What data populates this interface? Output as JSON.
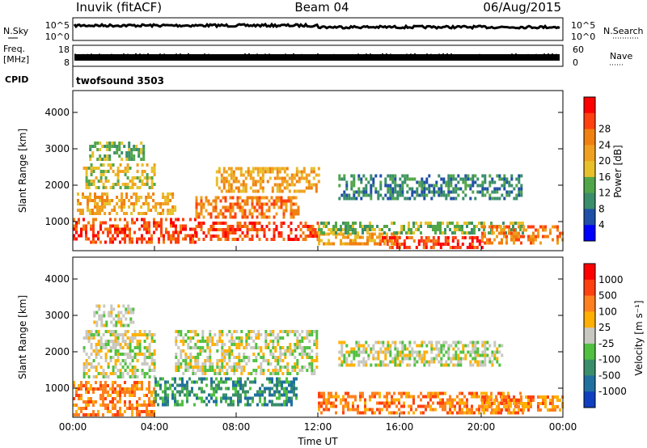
{
  "header": {
    "station": "Inuvik (fitACF)",
    "beam": "Beam 04",
    "date": "06/Aug/2015"
  },
  "nsky_panel": {
    "left_label": "N.Sky",
    "right_label": "N.Search",
    "left_ticks": [
      "10^5",
      "10^0"
    ],
    "right_ticks": [
      "10^5",
      "10^0"
    ]
  },
  "freq_panel": {
    "left_label_1": "Freq.",
    "left_label_2": "[MHz]",
    "right_label": "Nave",
    "left_ticks": [
      "18",
      "8"
    ],
    "right_ticks": [
      "60",
      "0"
    ]
  },
  "cpid_panel": {
    "label": "CPID",
    "text": "twofsound 3503"
  },
  "chart_data": [
    {
      "type": "heatmap",
      "name": "power",
      "xlabel": "",
      "ylabel": "Slant Range [km]",
      "xlim": [
        0,
        24
      ],
      "ylim": [
        200,
        4600
      ],
      "yticks": [
        "1000",
        "2000",
        "3000",
        "4000"
      ],
      "colorbar": {
        "label": "Power [dB]",
        "ticks": [
          "4",
          "8",
          "12",
          "16",
          "20",
          "24",
          "28"
        ],
        "colors": [
          "#0000ff",
          "#1f4fa6",
          "#3a8e6a",
          "#52a64a",
          "#e8c02a",
          "#f0a020",
          "#f08010",
          "#ff4010",
          "#ff0000"
        ]
      },
      "bands": [
        {
          "x": [
            0,
            6
          ],
          "y": [
            400,
            1100
          ],
          "level": 7
        },
        {
          "x": [
            0.2,
            5
          ],
          "y": [
            1200,
            1800
          ],
          "level": 5
        },
        {
          "x": [
            0.5,
            4
          ],
          "y": [
            1900,
            2600
          ],
          "level": 4
        },
        {
          "x": [
            0.8,
            3.5
          ],
          "y": [
            2700,
            3200
          ],
          "level": 3
        },
        {
          "x": [
            6,
            12
          ],
          "y": [
            500,
            1000
          ],
          "level": 7
        },
        {
          "x": [
            6,
            11
          ],
          "y": [
            1100,
            1700
          ],
          "level": 6
        },
        {
          "x": [
            7,
            12
          ],
          "y": [
            1800,
            2500
          ],
          "level": 5
        },
        {
          "x": [
            12,
            16
          ],
          "y": [
            400,
            700
          ],
          "level": 5
        },
        {
          "x": [
            15,
            20
          ],
          "y": [
            300,
            600
          ],
          "level": 7
        },
        {
          "x": [
            12,
            22
          ],
          "y": [
            700,
            1000
          ],
          "level": 3
        },
        {
          "x": [
            13,
            22
          ],
          "y": [
            1600,
            2300
          ],
          "level": 2
        },
        {
          "x": [
            20,
            24
          ],
          "y": [
            400,
            900
          ],
          "level": 6
        }
      ]
    },
    {
      "type": "heatmap",
      "name": "velocity",
      "xlabel": "Time UT",
      "ylabel": "Slant Range [km]",
      "xlim": [
        0,
        24
      ],
      "ylim": [
        200,
        4600
      ],
      "xticks": [
        "00:00",
        "04:00",
        "08:00",
        "12:00",
        "16:00",
        "20:00",
        "00:00"
      ],
      "yticks": [
        "1000",
        "2000",
        "3000",
        "4000"
      ],
      "colorbar": {
        "label": "Velocity [m s⁻¹]",
        "ticks": [
          "1000",
          "500",
          "100",
          "25",
          "-25",
          "-100",
          "-500",
          "-1000"
        ],
        "colors": [
          "#1040c0",
          "#2070a0",
          "#3a8e6a",
          "#50c040",
          "#c8c8c0",
          "#ffb000",
          "#ff8020",
          "#ff4010",
          "#ff0000"
        ]
      },
      "bands": [
        {
          "x": [
            0,
            4
          ],
          "y": [
            300,
            1200
          ],
          "level": 6
        },
        {
          "x": [
            0.5,
            4
          ],
          "y": [
            1300,
            2600
          ],
          "level": 4
        },
        {
          "x": [
            1,
            3
          ],
          "y": [
            2700,
            3300
          ],
          "level": 4
        },
        {
          "x": [
            4,
            11
          ],
          "y": [
            500,
            1300
          ],
          "level": 2
        },
        {
          "x": [
            5,
            12
          ],
          "y": [
            1400,
            2600
          ],
          "level": 4
        },
        {
          "x": [
            12,
            22
          ],
          "y": [
            300,
            900
          ],
          "level": 6
        },
        {
          "x": [
            13,
            21
          ],
          "y": [
            1600,
            2300
          ],
          "level": 4
        },
        {
          "x": [
            20,
            24
          ],
          "y": [
            400,
            800
          ],
          "level": 6
        }
      ]
    }
  ]
}
